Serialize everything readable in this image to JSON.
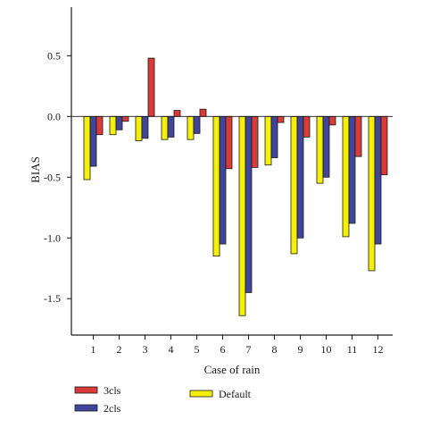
{
  "chart_data": {
    "type": "bar",
    "title": "",
    "xlabel": "Case of rain",
    "ylabel": "BIAS",
    "categories": [
      "1",
      "2",
      "3",
      "4",
      "5",
      "6",
      "7",
      "8",
      "9",
      "10",
      "11",
      "12"
    ],
    "ylim": [
      -1.8,
      0.9
    ],
    "yticks": [
      0.5,
      0.0,
      -0.5,
      -1.0,
      -1.5
    ],
    "ytick_labels": [
      "0.5",
      "0.0",
      "-0.5",
      "-1.0",
      "-1.5"
    ],
    "grid": false,
    "legend_position": "bottom",
    "series": [
      {
        "name": "Default",
        "color": "#f5f00a",
        "values": [
          -0.52,
          -0.15,
          -0.2,
          -0.19,
          -0.19,
          -1.15,
          -1.64,
          -0.4,
          -1.13,
          -0.55,
          -0.99,
          -1.27
        ]
      },
      {
        "name": "2cls",
        "color": "#41459a",
        "values": [
          -0.41,
          -0.11,
          -0.18,
          -0.17,
          -0.14,
          -1.05,
          -1.45,
          -0.34,
          -1.0,
          -0.5,
          -0.88,
          -1.05
        ]
      },
      {
        "name": "3cls",
        "color": "#d93b38",
        "values": [
          -0.15,
          -0.04,
          0.48,
          0.05,
          0.06,
          -0.43,
          -0.42,
          -0.05,
          -0.17,
          -0.07,
          -0.33,
          -0.48
        ]
      }
    ]
  }
}
